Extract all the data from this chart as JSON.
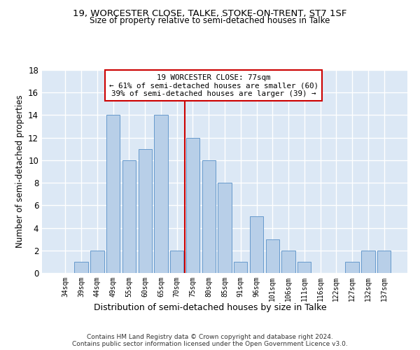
{
  "title_line1": "19, WORCESTER CLOSE, TALKE, STOKE-ON-TRENT, ST7 1SF",
  "title_line2": "Size of property relative to semi-detached houses in Talke",
  "xlabel": "Distribution of semi-detached houses by size in Talke",
  "ylabel": "Number of semi-detached properties",
  "categories": [
    "34sqm",
    "39sqm",
    "44sqm",
    "49sqm",
    "55sqm",
    "60sqm",
    "65sqm",
    "70sqm",
    "75sqm",
    "80sqm",
    "85sqm",
    "91sqm",
    "96sqm",
    "101sqm",
    "106sqm",
    "111sqm",
    "116sqm",
    "122sqm",
    "127sqm",
    "132sqm",
    "137sqm"
  ],
  "values": [
    0,
    1,
    2,
    14,
    10,
    11,
    14,
    2,
    12,
    10,
    8,
    1,
    5,
    3,
    2,
    1,
    0,
    0,
    1,
    2,
    2
  ],
  "bar_color": "#b8cfe8",
  "bar_edgecolor": "#6699cc",
  "highlight_index": 8,
  "vline_color": "#cc0000",
  "annotation_title": "19 WORCESTER CLOSE: 77sqm",
  "annotation_line1": "← 61% of semi-detached houses are smaller (60)",
  "annotation_line2": "39% of semi-detached houses are larger (39) →",
  "annotation_box_facecolor": "#ffffff",
  "annotation_box_edgecolor": "#cc0000",
  "footer_line1": "Contains HM Land Registry data © Crown copyright and database right 2024.",
  "footer_line2": "Contains public sector information licensed under the Open Government Licence v3.0.",
  "ylim": [
    0,
    18
  ],
  "yticks": [
    0,
    2,
    4,
    6,
    8,
    10,
    12,
    14,
    16,
    18
  ],
  "bg_color": "#dce8f5",
  "grid_color": "#ffffff"
}
